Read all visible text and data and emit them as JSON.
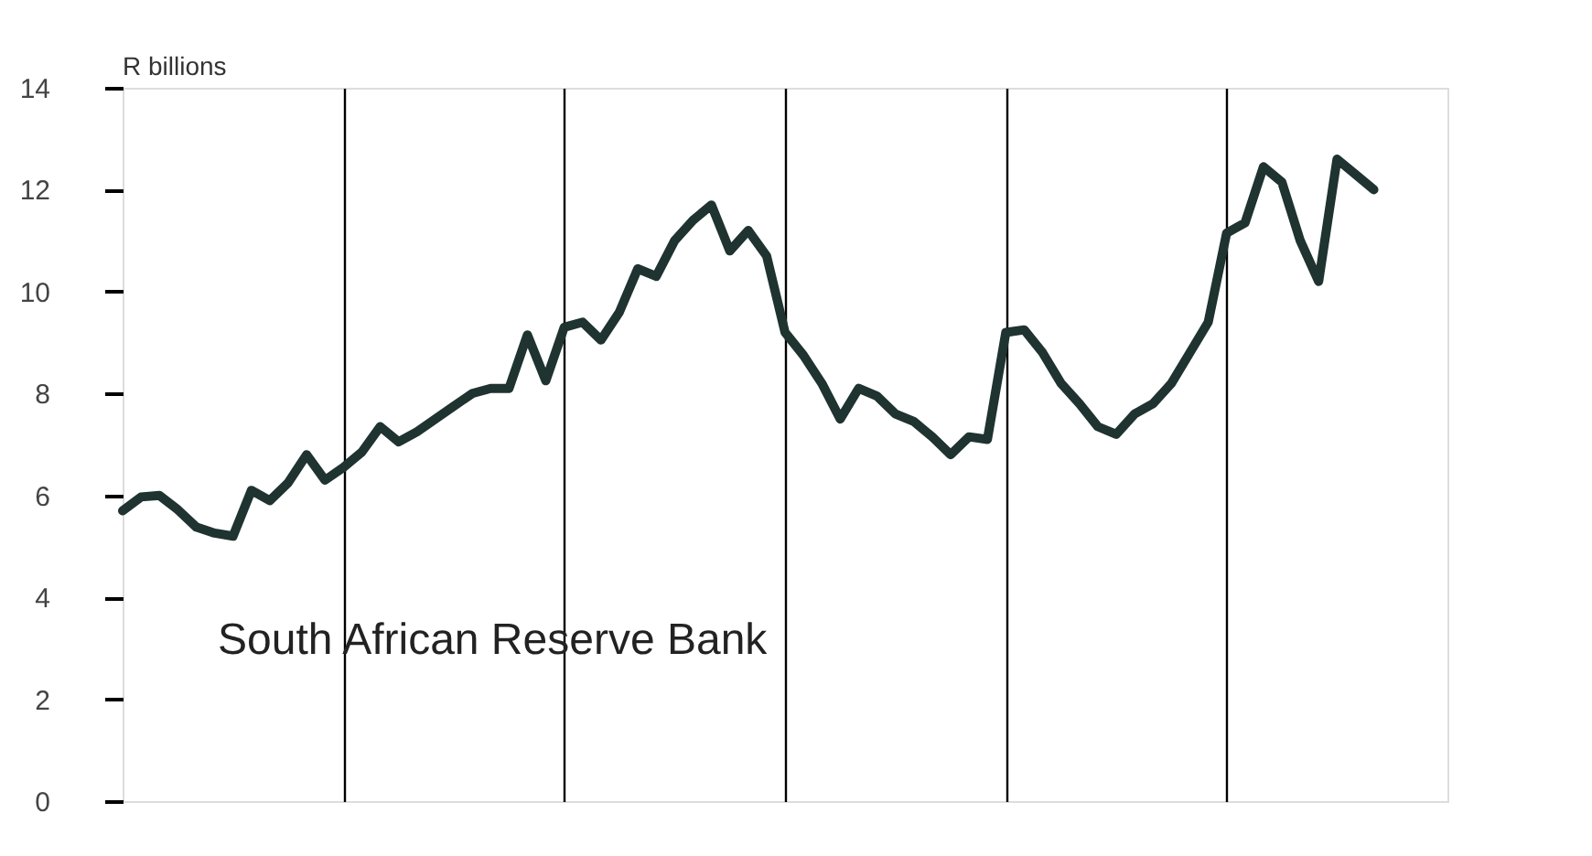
{
  "chart_data": {
    "type": "line",
    "ylabel": "R billions",
    "categories": [
      null,
      null,
      null,
      null,
      null,
      null,
      null,
      null,
      null,
      null,
      null,
      null,
      null,
      null,
      null,
      null,
      null,
      null,
      null,
      null,
      null,
      null,
      null,
      null,
      null,
      null,
      null,
      null,
      null,
      null,
      null,
      null,
      null,
      null,
      null,
      null,
      null,
      null,
      null,
      null,
      null,
      null,
      null,
      null,
      null,
      null,
      null,
      null,
      null,
      null,
      null,
      null,
      null,
      null,
      null,
      null,
      null,
      null,
      null,
      null,
      null,
      null,
      null,
      null,
      null,
      null,
      null,
      null,
      null,
      null,
      null,
      null,
      null
    ],
    "series": [
      {
        "color": "#1f3330",
        "values": [
          5.7,
          5.97,
          6.0,
          5.72,
          5.38,
          5.26,
          5.2,
          6.1,
          5.9,
          6.25,
          6.8,
          6.3,
          6.55,
          6.85,
          7.35,
          7.05,
          7.25,
          7.5,
          7.75,
          8.0,
          8.1,
          8.1,
          9.15,
          8.25,
          9.3,
          9.4,
          9.05,
          9.6,
          10.45,
          10.3,
          11.0,
          11.4,
          11.7,
          10.8,
          11.2,
          10.7,
          9.2,
          8.75,
          8.2,
          7.5,
          8.1,
          7.95,
          7.6,
          7.45,
          7.15,
          6.8,
          7.15,
          7.1,
          9.2,
          9.25,
          8.8,
          8.2,
          7.8,
          7.35,
          7.2,
          7.6,
          7.8,
          8.2,
          8.8,
          9.4,
          11.15,
          11.35,
          12.45,
          12.15,
          11.0,
          10.2,
          12.6,
          12.3,
          12.0,
          null,
          null,
          null,
          null
        ]
      }
    ],
    "ylim": [
      0,
      14
    ],
    "yticks": [
      0,
      2,
      4,
      6,
      8,
      10,
      12,
      14
    ],
    "grid": "x",
    "tick_labels": "y",
    "annotations": [
      "South African Reserve Bank"
    ]
  }
}
